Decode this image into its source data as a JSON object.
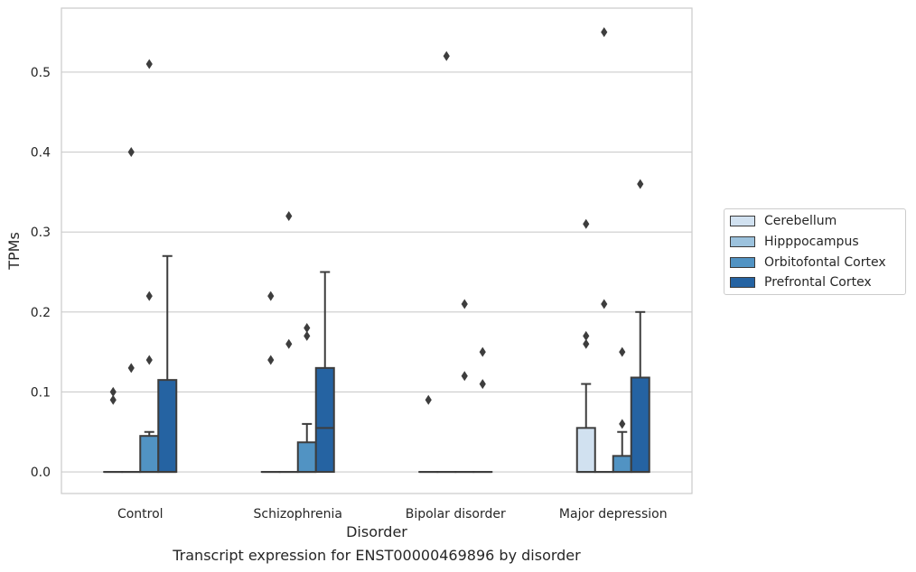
{
  "chart_data": {
    "type": "box",
    "caption": "Transcript expression for ENST00000469896 by disorder",
    "xlabel": "Disorder",
    "ylabel": "TPMs",
    "ylim": [
      -0.027,
      0.58
    ],
    "yticks": [
      0.0,
      0.1,
      0.2,
      0.3,
      0.4,
      0.5
    ],
    "ytick_labels": [
      "0.0",
      "0.1",
      "0.2",
      "0.3",
      "0.4",
      "0.5"
    ],
    "categories": [
      "Control",
      "Schizophrenia",
      "Bipolar disorder",
      "Major depression"
    ],
    "grid": "horizontal",
    "legend_position": "right",
    "series": [
      {
        "name": "Cerebellum",
        "color": "#d1e1f0",
        "boxes": [
          {
            "q1": 0,
            "median": 0,
            "q3": 0,
            "whislo": 0,
            "whishi": 0,
            "fliers": [
              0.09,
              0.1
            ]
          },
          {
            "q1": 0,
            "median": 0,
            "q3": 0,
            "whislo": 0,
            "whishi": 0,
            "fliers": [
              0.14,
              0.22
            ]
          },
          {
            "q1": 0,
            "median": 0,
            "q3": 0,
            "whislo": 0,
            "whishi": 0,
            "fliers": [
              0.09
            ]
          },
          {
            "q1": 0,
            "median": 0,
            "q3": 0.055,
            "whislo": 0,
            "whishi": 0.11,
            "fliers": [
              0.16,
              0.17,
              0.31
            ]
          }
        ]
      },
      {
        "name": "Hipppocampus",
        "color": "#9cc2dd",
        "boxes": [
          {
            "q1": 0,
            "median": 0,
            "q3": 0,
            "whislo": 0,
            "whishi": 0,
            "fliers": [
              0.13,
              0.4
            ]
          },
          {
            "q1": 0,
            "median": 0,
            "q3": 0,
            "whislo": 0,
            "whishi": 0,
            "fliers": [
              0.16,
              0.32
            ]
          },
          {
            "q1": 0,
            "median": 0,
            "q3": 0,
            "whislo": 0,
            "whishi": 0,
            "fliers": [
              0.52
            ]
          },
          {
            "q1": 0,
            "median": 0,
            "q3": 0,
            "whislo": 0,
            "whishi": 0,
            "fliers": [
              0.21,
              0.55
            ]
          }
        ]
      },
      {
        "name": "Orbitofontal Cortex",
        "color": "#5193c3",
        "boxes": [
          {
            "q1": 0,
            "median": 0,
            "q3": 0.045,
            "whislo": 0,
            "whishi": 0.05,
            "fliers": [
              0.14,
              0.22,
              0.51
            ]
          },
          {
            "q1": 0,
            "median": 0,
            "q3": 0.037,
            "whislo": 0,
            "whishi": 0.06,
            "fliers": [
              0.17,
              0.18
            ]
          },
          {
            "q1": 0,
            "median": 0,
            "q3": 0,
            "whislo": 0,
            "whishi": 0,
            "fliers": [
              0.12,
              0.21
            ]
          },
          {
            "q1": 0,
            "median": 0,
            "q3": 0.02,
            "whislo": 0,
            "whishi": 0.05,
            "fliers": [
              0.06,
              0.15
            ]
          }
        ]
      },
      {
        "name": "Prefrontal Cortex",
        "color": "#2563a2",
        "boxes": [
          {
            "q1": 0,
            "median": 0,
            "q3": 0.115,
            "whislo": 0,
            "whishi": 0.27,
            "fliers": []
          },
          {
            "q1": 0,
            "median": 0.055,
            "q3": 0.13,
            "whislo": 0,
            "whishi": 0.25,
            "fliers": []
          },
          {
            "q1": 0,
            "median": 0,
            "q3": 0,
            "whislo": 0,
            "whishi": 0,
            "fliers": [
              0.11,
              0.15
            ]
          },
          {
            "q1": 0,
            "median": 0,
            "q3": 0.118,
            "whislo": 0,
            "whishi": 0.2,
            "fliers": [
              0.36
            ]
          }
        ]
      }
    ]
  }
}
